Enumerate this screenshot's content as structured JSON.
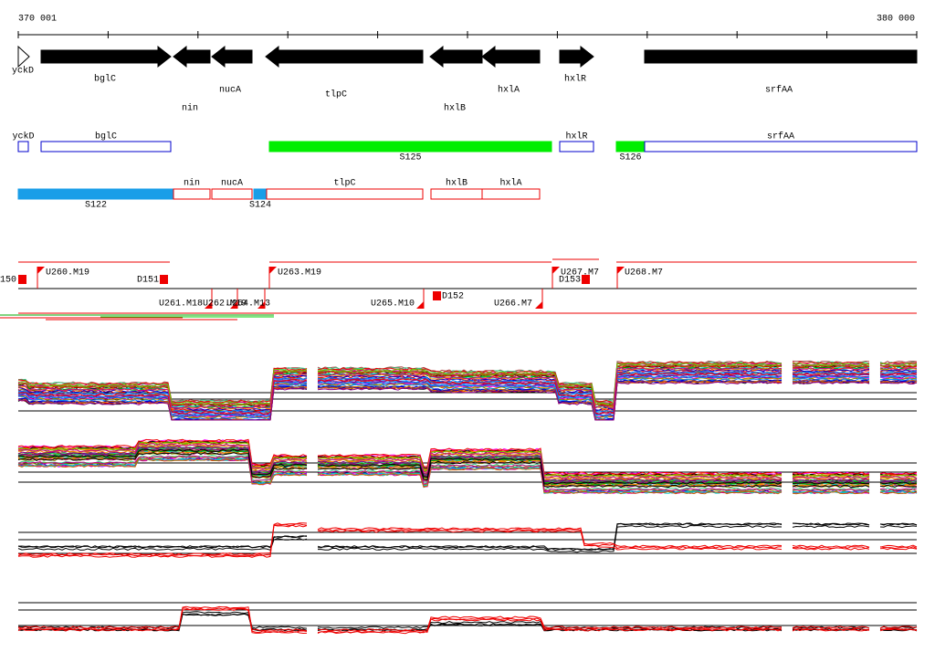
{
  "ruler": {
    "start": "370 001",
    "end": "380 000"
  },
  "genes": [
    "yckD",
    "bglC",
    "nin",
    "nucA",
    "tlpC",
    "hxlB",
    "hxlA",
    "hxlR",
    "srfAA"
  ],
  "features_top": [
    "yckD",
    "bglC",
    "S125",
    "hxlR",
    "S126",
    "srfAA"
  ],
  "features_bottom": [
    "S122",
    "nin",
    "nucA",
    "S124",
    "tlpC",
    "hxlB",
    "hxlA"
  ],
  "probes": [
    "150",
    "U260.M19",
    "D151",
    "U263.M19",
    "U267.M7",
    "D153",
    "U268.M7",
    "U261.M18",
    "U262.M19",
    "U264.M13",
    "U265.M10",
    "D152",
    "U266.M7"
  ]
}
